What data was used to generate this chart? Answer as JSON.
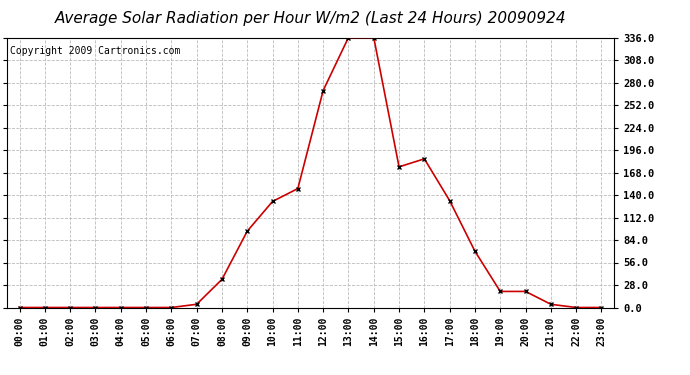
{
  "title": "Average Solar Radiation per Hour W/m2 (Last 24 Hours) 20090924",
  "copyright": "Copyright 2009 Cartronics.com",
  "hours": [
    "00:00",
    "01:00",
    "02:00",
    "03:00",
    "04:00",
    "05:00",
    "06:00",
    "07:00",
    "08:00",
    "09:00",
    "10:00",
    "11:00",
    "12:00",
    "13:00",
    "14:00",
    "15:00",
    "16:00",
    "17:00",
    "18:00",
    "19:00",
    "20:00",
    "21:00",
    "22:00",
    "23:00"
  ],
  "values": [
    0,
    0,
    0,
    0,
    0,
    0,
    0,
    4,
    35,
    95,
    132,
    148,
    270,
    336,
    336,
    175,
    185,
    133,
    70,
    20,
    20,
    4,
    0,
    0
  ],
  "line_color": "#cc0000",
  "marker_color": "#000000",
  "bg_color": "#ffffff",
  "plot_bg_color": "#ffffff",
  "grid_color": "#bbbbbb",
  "ylim": [
    0,
    336
  ],
  "yticks": [
    0,
    28,
    56,
    84,
    112,
    140,
    168,
    196,
    224,
    252,
    280,
    308,
    336
  ],
  "title_fontsize": 11,
  "copyright_fontsize": 7
}
